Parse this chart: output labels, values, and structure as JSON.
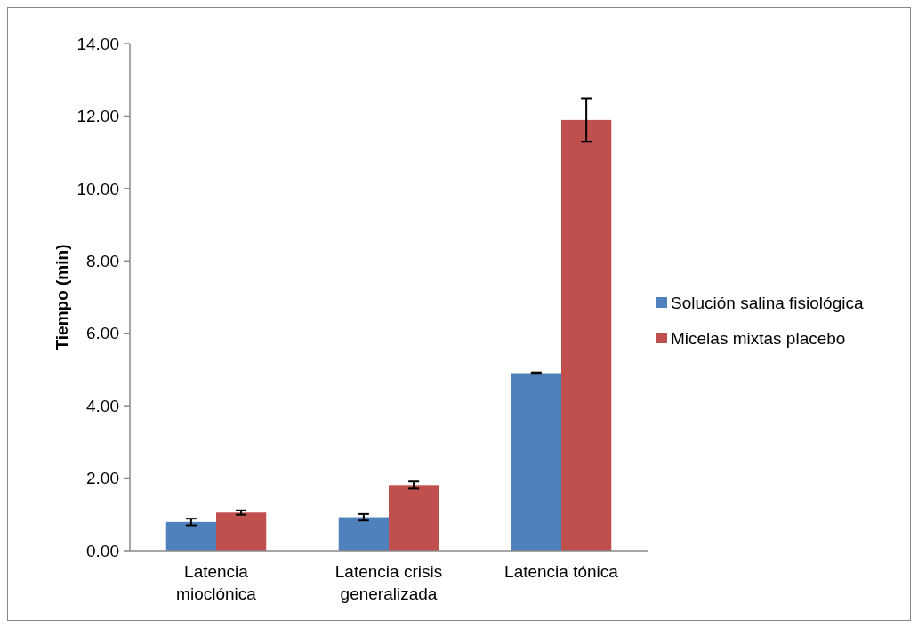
{
  "chart_data": {
    "type": "bar",
    "ylabel": "Tiempo (min)",
    "categories": [
      "Latencia mioclónica",
      "Latencia crisis generalizada",
      "Latencia tónica"
    ],
    "series": [
      {
        "name": "Solución salina fisiológica",
        "color": "#4f81bd",
        "values": [
          0.79,
          0.92,
          4.9
        ],
        "errors": [
          0.09,
          0.09,
          0.02
        ]
      },
      {
        "name": "Micelas mixtas placebo",
        "color": "#c0504d",
        "values": [
          1.05,
          1.81,
          11.89
        ],
        "errors": [
          0.06,
          0.1,
          0.6
        ]
      }
    ],
    "ylim": [
      0,
      14
    ],
    "yticks": [
      {
        "value": 0,
        "label": "0.00"
      },
      {
        "value": 2,
        "label": "2.00"
      },
      {
        "value": 4,
        "label": "4.00"
      },
      {
        "value": 6,
        "label": "6.00"
      },
      {
        "value": 8,
        "label": "8.00"
      },
      {
        "value": 10,
        "label": "10.00"
      },
      {
        "value": 12,
        "label": "12.00"
      },
      {
        "value": 14,
        "label": "14.00"
      }
    ],
    "grid": false,
    "legend": "right"
  }
}
